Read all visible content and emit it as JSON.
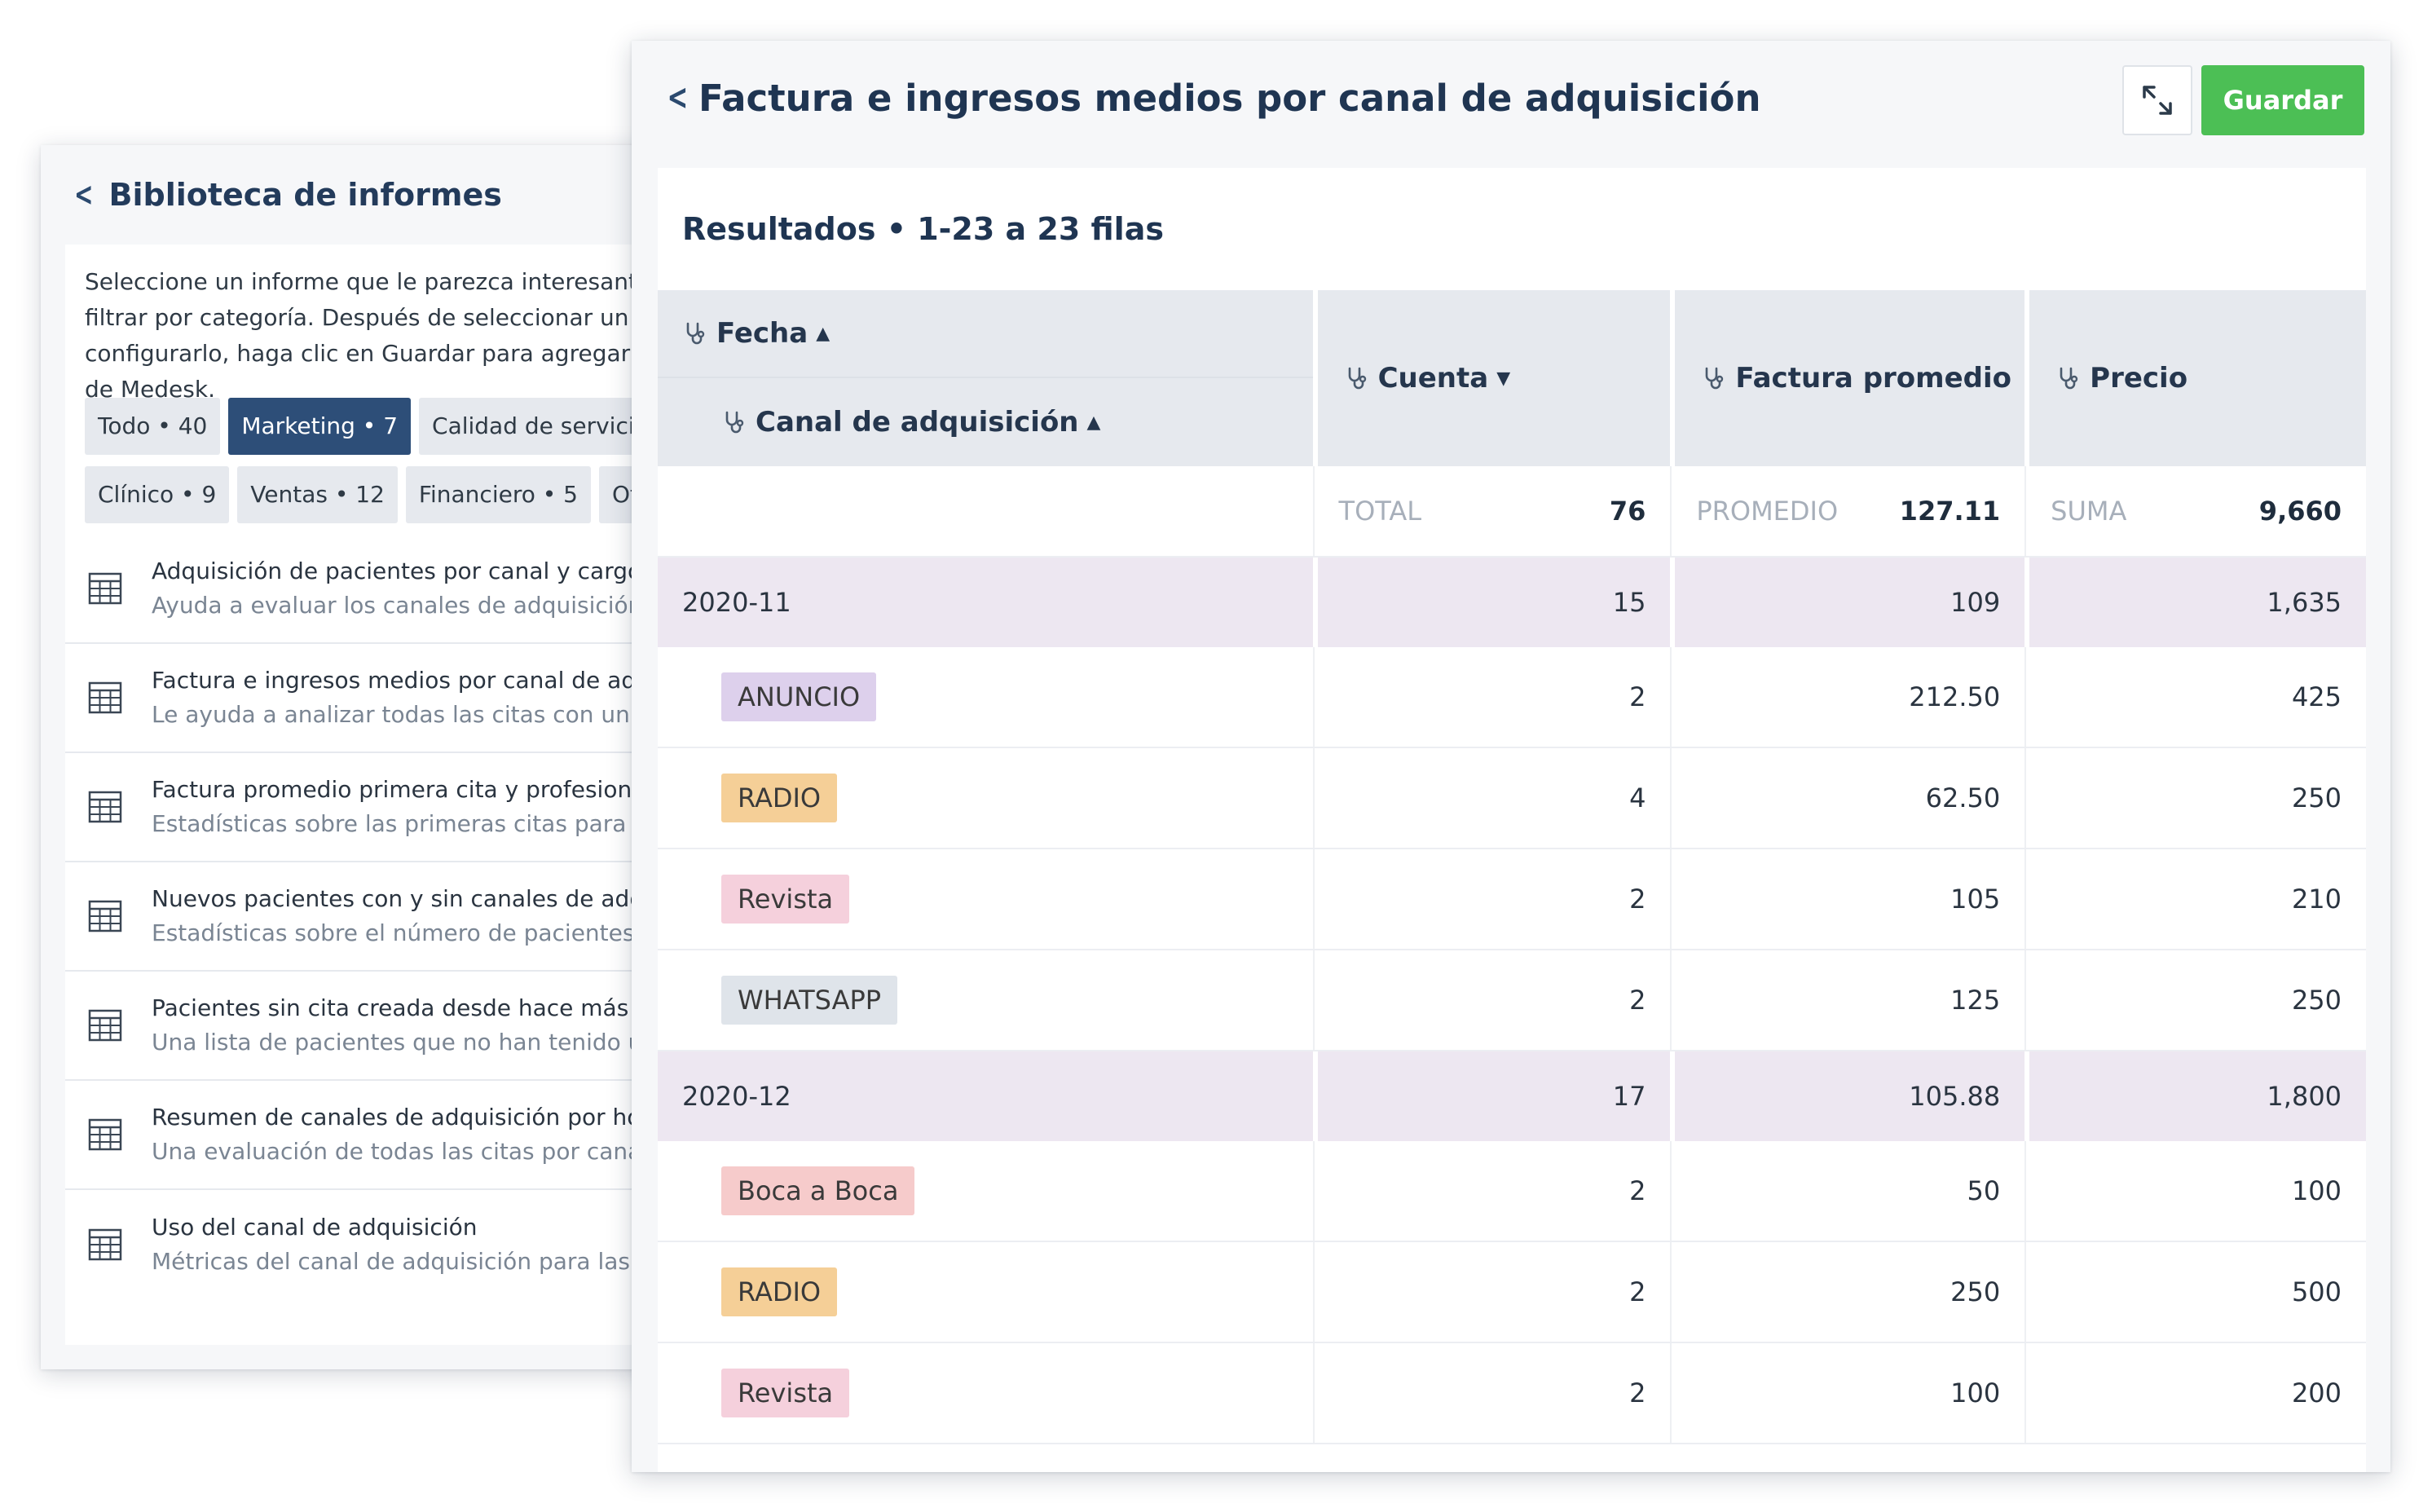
{
  "library": {
    "title": "Biblioteca de informes",
    "description_lines": [
      "Seleccione un informe que le parezca interesante. L",
      "filtrar por categoría. Después de seleccionar un inf",
      "configurarlo, haga clic en Guardar para agregarlo a",
      "de Medesk."
    ],
    "chips_row1": [
      "Todo • 40",
      "Marketing • 7",
      "Calidad de servicio •"
    ],
    "chips_row2": [
      "Clínico • 9",
      "Ventas • 12",
      "Financiero • 5",
      "Otro"
    ],
    "active_chip": "Marketing • 7",
    "reports": [
      {
        "title": "Adquisición de pacientes por canal y cargo",
        "subtitle": "Ayuda a evaluar los canales de adquisición y"
      },
      {
        "title": "Factura e ingresos medios por canal de adqu",
        "subtitle": "Le ayuda a analizar todas las citas con un car"
      },
      {
        "title": "Factura promedio primera cita y profesional",
        "subtitle": "Estadísticas sobre las primeras citas para nue"
      },
      {
        "title": "Nuevos pacientes con y sin canales de adquis",
        "subtitle": "Estadísticas sobre el número de pacientes nu"
      },
      {
        "title": "Pacientes sin cita creada desde hace más de",
        "subtitle": "Una lista de pacientes que no han tenido una"
      },
      {
        "title": "Resumen de canales de adquisición por hora",
        "subtitle": "Una evaluación de todas las citas por canal d"
      },
      {
        "title": "Uso del canal de adquisición",
        "subtitle": "Métricas del canal de adquisición para las pri"
      }
    ]
  },
  "report": {
    "title": "Factura e ingresos medios por canal de adquisición",
    "save_label": "Guardar",
    "results_title": "Resultados • 1-23 a 23 filas",
    "columns": {
      "fecha": "Fecha",
      "canal": "Canal de adquisición",
      "cuenta": "Cuenta",
      "factura": "Factura promedio",
      "precio": "Precio"
    },
    "totals": {
      "count_label": "TOTAL",
      "count_value": "76",
      "avg_label": "PROMEDIO",
      "avg_value": "127.11",
      "sum_label": "SUMA",
      "sum_value": "9,660"
    },
    "rows": [
      {
        "type": "group",
        "label": "2020-11",
        "count": "15",
        "avg": "109",
        "price": "1,635"
      },
      {
        "type": "child",
        "label": "ANUNCIO",
        "tag_color": "#ddd0ec",
        "count": "2",
        "avg": "212.50",
        "price": "425"
      },
      {
        "type": "child",
        "label": "RADIO",
        "tag_color": "#f5cf97",
        "count": "4",
        "avg": "62.50",
        "price": "250"
      },
      {
        "type": "child",
        "label": "Revista",
        "tag_color": "#f5d0dc",
        "count": "2",
        "avg": "105",
        "price": "210"
      },
      {
        "type": "child",
        "label": "WHATSAPP",
        "tag_color": "#dfe4ea",
        "count": "2",
        "avg": "125",
        "price": "250"
      },
      {
        "type": "group",
        "label": "2020-12",
        "count": "17",
        "avg": "105.88",
        "price": "1,800"
      },
      {
        "type": "child",
        "label": "Boca a Boca",
        "tag_color": "#f6cbcb",
        "count": "2",
        "avg": "50",
        "price": "100"
      },
      {
        "type": "child",
        "label": "RADIO",
        "tag_color": "#f5cf97",
        "count": "2",
        "avg": "250",
        "price": "500"
      },
      {
        "type": "child",
        "label": "Revista",
        "tag_color": "#f5d0dc",
        "count": "2",
        "avg": "100",
        "price": "200"
      }
    ]
  },
  "colors": {
    "accent_navy": "#2d4e78",
    "save_green": "#4cbf55",
    "group_row_bg": "#ede7f1",
    "header_bg": "#e6e9ee"
  },
  "icons": {
    "back": "chevron-left-icon",
    "expand": "expand-arrows-icon",
    "column": "stethoscope-icon",
    "report": "table-grid-icon",
    "sort_asc": "caret-up-icon",
    "sort_desc": "caret-down-icon"
  }
}
